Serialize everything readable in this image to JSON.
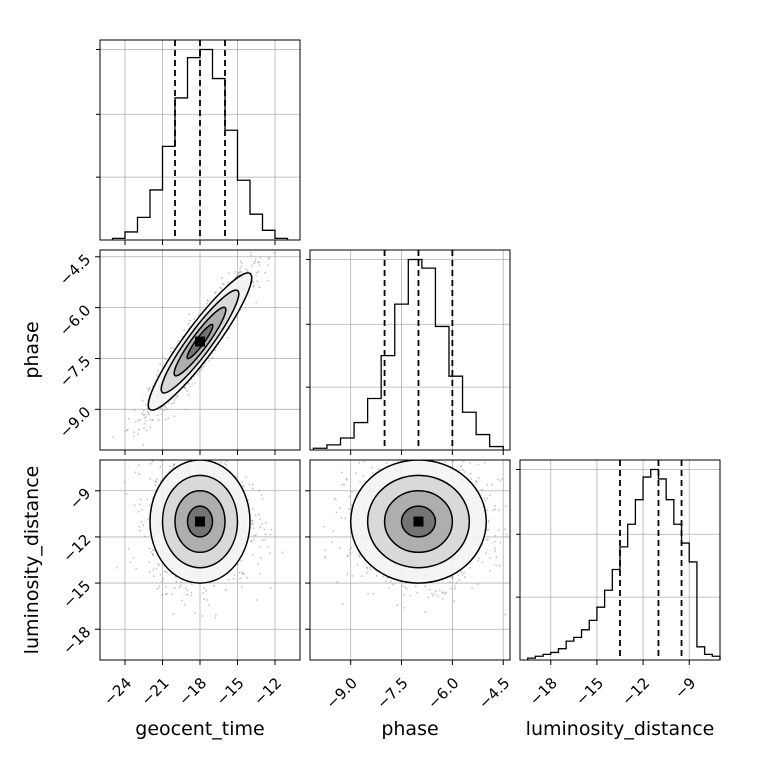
{
  "chart_data": {
    "type": "corner",
    "grid": true,
    "parameters": [
      {
        "name": "geocent_time",
        "label": "geocent_time",
        "range": [
          -26,
          -10
        ],
        "ticks": [
          -24,
          -21,
          -18,
          -15,
          -12
        ],
        "tick_labels": [
          "−24",
          "−21",
          "−18",
          "−15",
          "−12"
        ]
      },
      {
        "name": "phase",
        "label": "phase",
        "range": [
          -10.2,
          -4.3
        ],
        "ticks": [
          -9.0,
          -7.5,
          -6.0,
          -4.5
        ],
        "tick_labels": [
          "−9.0",
          "−7.5",
          "−6.0",
          "−4.5"
        ]
      },
      {
        "name": "luminosity_distance",
        "label": "luminosity_distance",
        "range": [
          -20,
          -7
        ],
        "ticks": [
          -18,
          -15,
          -12,
          -9
        ],
        "tick_labels": [
          "−18",
          "−15",
          "−12",
          "−9"
        ]
      }
    ],
    "histograms": [
      {
        "parameter": "geocent_time",
        "bin_edges": [
          -25,
          -24,
          -23,
          -22,
          -21,
          -20,
          -19,
          -18,
          -17,
          -16,
          -15,
          -14,
          -13,
          -12,
          -11
        ],
        "counts": [
          1,
          5,
          14,
          31,
          58,
          88,
          113,
          118,
          100,
          68,
          37,
          16,
          6,
          1
        ],
        "quantiles": [
          -20.0,
          -18.0,
          -16.0
        ]
      },
      {
        "parameter": "phase",
        "bin_edges": [
          -10.1,
          -9.7,
          -9.3,
          -8.9,
          -8.5,
          -8.1,
          -7.7,
          -7.3,
          -6.9,
          -6.5,
          -6.1,
          -5.7,
          -5.3,
          -4.9,
          -4.5
        ],
        "counts": [
          1,
          3,
          7,
          16,
          30,
          55,
          85,
          111,
          106,
          72,
          43,
          22,
          9,
          2
        ],
        "quantiles": [
          -8.0,
          -7.0,
          -6.0
        ]
      },
      {
        "parameter": "luminosity_distance",
        "bin_edges": [
          -19.5,
          -19,
          -18.5,
          -18,
          -17.5,
          -17,
          -16.5,
          -16,
          -15.5,
          -15,
          -14.5,
          -14,
          -13.5,
          -13,
          -12.5,
          -12,
          -11.5,
          -11,
          -10.5,
          -10,
          -9.5,
          -9,
          -8.5,
          -8,
          -7.5,
          -7
        ],
        "counts": [
          1,
          2,
          3,
          4,
          6,
          10,
          12,
          16,
          21,
          28,
          37,
          48,
          60,
          72,
          85,
          97,
          101,
          96,
          85,
          72,
          62,
          52,
          7,
          3,
          2
        ],
        "quantiles": [
          -13.5,
          -11.0,
          -9.5
        ]
      }
    ],
    "pairs": [
      {
        "x": "geocent_time",
        "y": "phase",
        "correlation": 0.93,
        "mean": [
          -18.0,
          -7.0
        ],
        "std": [
          2.0,
          1.0
        ]
      },
      {
        "x": "geocent_time",
        "y": "luminosity_distance",
        "correlation": 0.0,
        "mean": [
          -18.0,
          -11.0
        ],
        "std": [
          2.0,
          2.0
        ]
      },
      {
        "x": "phase",
        "y": "luminosity_distance",
        "correlation": 0.0,
        "mean": [
          -7.0,
          -11.0
        ],
        "std": [
          1.0,
          2.0
        ]
      }
    ]
  }
}
